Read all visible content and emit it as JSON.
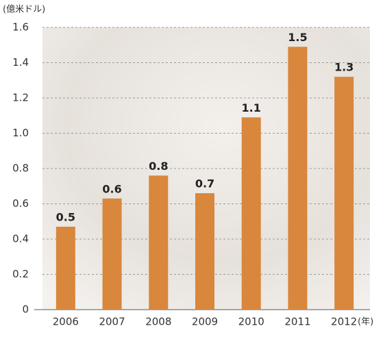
{
  "chart_data": {
    "type": "bar",
    "y_label": "(億米ドル)",
    "x_label": "(年)",
    "categories": [
      "2006",
      "2007",
      "2008",
      "2009",
      "2010",
      "2011",
      "2012"
    ],
    "values": [
      0.47,
      0.63,
      0.76,
      0.66,
      1.09,
      1.49,
      1.32
    ],
    "value_labels": [
      "0.5",
      "0.6",
      "0.8",
      "0.7",
      "1.1",
      "1.5",
      "1.3"
    ],
    "color": "#d8873c",
    "ylim": [
      0,
      1.6
    ],
    "yticks": [
      0,
      0.2,
      0.4,
      0.6,
      0.8,
      {
        "value": 1,
        "label": "1.0"
      },
      1.2,
      1.4,
      1.6
    ],
    "grid": true
  }
}
